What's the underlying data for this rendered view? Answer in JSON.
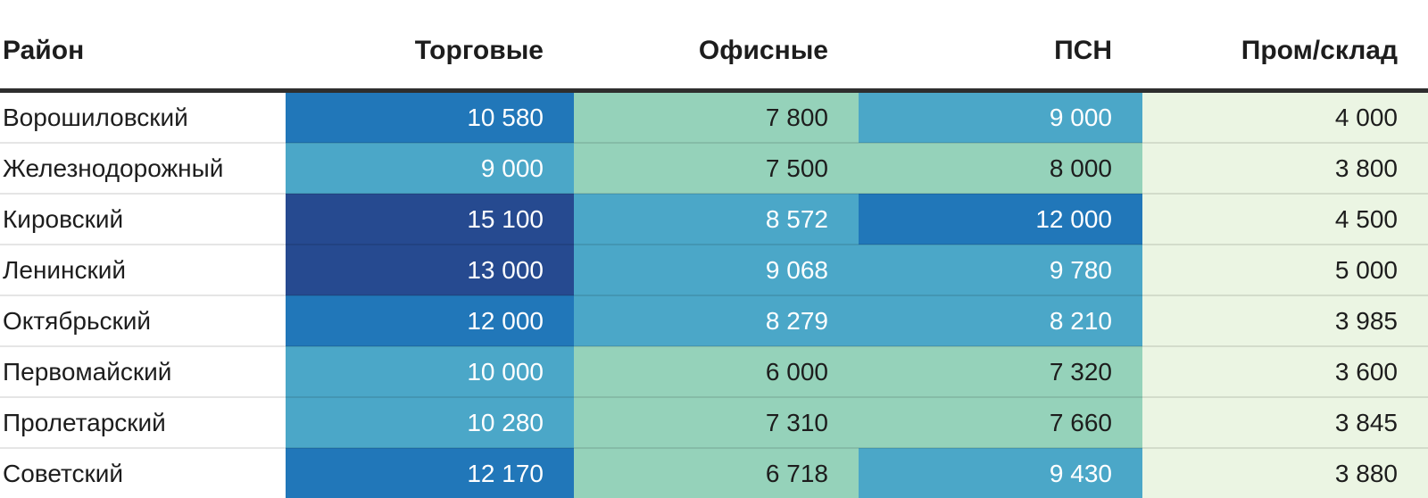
{
  "palette": {
    "page_background": "#ffffff",
    "header_text": "#1d1d1d",
    "body_text": "#1d1d1d",
    "header_rule": "#2e2e2e",
    "row_divider": "rgba(0,0,0,0.10)",
    "bins": {
      "b1": {
        "bg": "#ebf5e3",
        "text": "#1d1d1d"
      },
      "b2": {
        "bg": "#95d2ba",
        "text": "#1d1d1d"
      },
      "b3": {
        "bg": "#4ba7c8",
        "text": "#ffffff"
      },
      "b4": {
        "bg": "#2177b9",
        "text": "#ffffff"
      },
      "b5": {
        "bg": "#264a90",
        "text": "#ffffff"
      }
    }
  },
  "table": {
    "headers": {
      "district": "Район",
      "retail": "Торговые",
      "office": "Офисные",
      "psn": "ПСН",
      "industrial": "Пром/склад"
    },
    "rows": [
      {
        "district": "Ворошиловский",
        "cells": [
          {
            "v": "10 580",
            "bin": "b4"
          },
          {
            "v": "7 800",
            "bin": "b2"
          },
          {
            "v": "9 000",
            "bin": "b3"
          },
          {
            "v": "4 000",
            "bin": "b1"
          }
        ]
      },
      {
        "district": "Железнодорожный",
        "cells": [
          {
            "v": "9 000",
            "bin": "b3"
          },
          {
            "v": "7 500",
            "bin": "b2"
          },
          {
            "v": "8 000",
            "bin": "b2"
          },
          {
            "v": "3 800",
            "bin": "b1"
          }
        ]
      },
      {
        "district": "Кировский",
        "cells": [
          {
            "v": "15 100",
            "bin": "b5"
          },
          {
            "v": "8 572",
            "bin": "b3"
          },
          {
            "v": "12 000",
            "bin": "b4"
          },
          {
            "v": "4 500",
            "bin": "b1"
          }
        ]
      },
      {
        "district": "Ленинский",
        "cells": [
          {
            "v": "13 000",
            "bin": "b5"
          },
          {
            "v": "9 068",
            "bin": "b3"
          },
          {
            "v": "9 780",
            "bin": "b3"
          },
          {
            "v": "5 000",
            "bin": "b1"
          }
        ]
      },
      {
        "district": "Октябрьский",
        "cells": [
          {
            "v": "12 000",
            "bin": "b4"
          },
          {
            "v": "8 279",
            "bin": "b3"
          },
          {
            "v": "8 210",
            "bin": "b3"
          },
          {
            "v": "3 985",
            "bin": "b1"
          }
        ]
      },
      {
        "district": "Первомайский",
        "cells": [
          {
            "v": "10 000",
            "bin": "b3"
          },
          {
            "v": "6 000",
            "bin": "b2"
          },
          {
            "v": "7 320",
            "bin": "b2"
          },
          {
            "v": "3 600",
            "bin": "b1"
          }
        ]
      },
      {
        "district": "Пролетарский",
        "cells": [
          {
            "v": "10 280",
            "bin": "b3"
          },
          {
            "v": "7 310",
            "bin": "b2"
          },
          {
            "v": "7 660",
            "bin": "b2"
          },
          {
            "v": "3 845",
            "bin": "b1"
          }
        ]
      },
      {
        "district": "Советский",
        "cells": [
          {
            "v": "12 170",
            "bin": "b4"
          },
          {
            "v": "6 718",
            "bin": "b2"
          },
          {
            "v": "9 430",
            "bin": "b3"
          },
          {
            "v": "3 880",
            "bin": "b1"
          }
        ]
      }
    ]
  },
  "chart_data": {
    "type": "heatmap",
    "columns": [
      "Торговые",
      "Офисные",
      "ПСН",
      "Пром/склад"
    ],
    "rows": [
      "Ворошиловский",
      "Железнодорожный",
      "Кировский",
      "Ленинский",
      "Октябрьский",
      "Первомайский",
      "Пролетарский",
      "Советский"
    ],
    "values": [
      [
        10580,
        7800,
        9000,
        4000
      ],
      [
        9000,
        7500,
        8000,
        3800
      ],
      [
        15100,
        8572,
        12000,
        4500
      ],
      [
        13000,
        9068,
        9780,
        5000
      ],
      [
        12000,
        8279,
        8210,
        3985
      ],
      [
        10000,
        6000,
        7320,
        3600
      ],
      [
        10280,
        7310,
        7660,
        3845
      ],
      [
        12170,
        6718,
        9430,
        3880
      ]
    ],
    "value_range": [
      3600,
      15100
    ],
    "first_column_label": "Район",
    "legend_position": "none",
    "grid": "row-dividers-only",
    "color_scale": [
      {
        "bin": "b1",
        "bg": "#ebf5e3",
        "observed_values": "3600–5000"
      },
      {
        "bin": "b2",
        "bg": "#95d2ba",
        "observed_values": "6000–8000"
      },
      {
        "bin": "b3",
        "bg": "#4ba7c8",
        "observed_values": "8210–10280"
      },
      {
        "bin": "b4",
        "bg": "#2177b9",
        "observed_values": "10580–12170"
      },
      {
        "bin": "b5",
        "bg": "#264a90",
        "observed_values": "13000–15100"
      }
    ]
  }
}
